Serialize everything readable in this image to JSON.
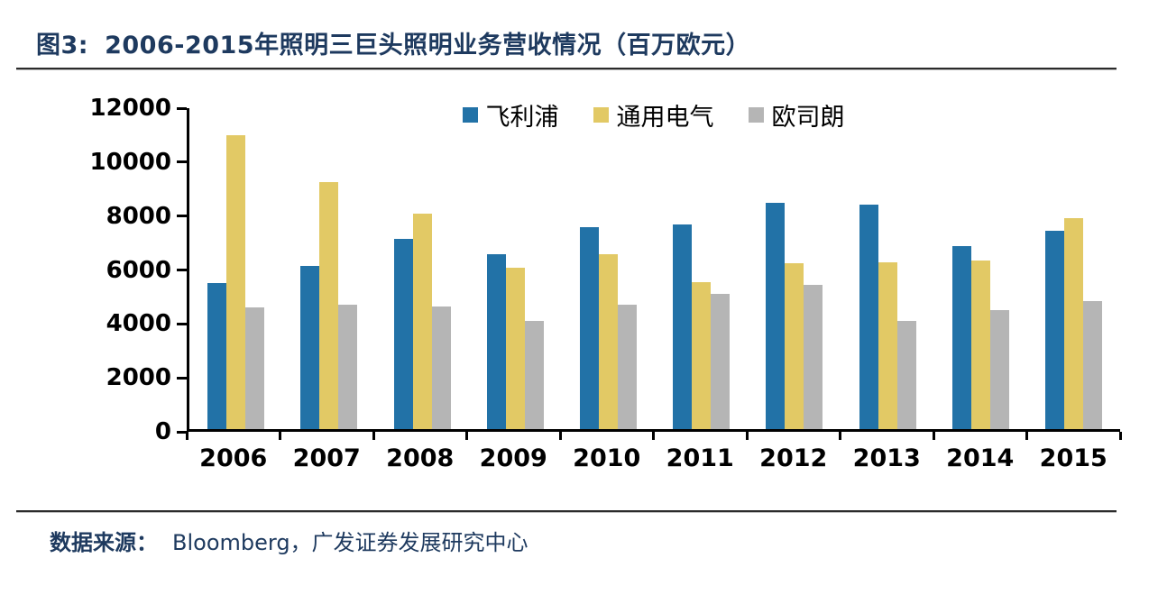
{
  "figure": {
    "title_prefix": "图3:",
    "title": "2006-2015年照明三巨头照明业务营收情况（百万欧元）",
    "source_label": "数据来源：",
    "source_text": "Bloomberg，广发证券发展研究中心"
  },
  "colors": {
    "philips_blue": "#2272A7",
    "ge_yellow": "#E2C965",
    "osram_gray": "#B5B5B5",
    "title_navy": "#1E3A5F",
    "axis_black": "#000000",
    "rule_dark": "#2b2b2b"
  },
  "chart_data": {
    "type": "bar",
    "title": "2006-2015年照明三巨头照明业务营收情况（百万欧元）",
    "categories": [
      "2006",
      "2007",
      "2008",
      "2009",
      "2010",
      "2011",
      "2012",
      "2013",
      "2014",
      "2015"
    ],
    "series": [
      {
        "key": "philips",
        "name": "飞利浦",
        "color": "#2272A7",
        "values": [
          5450,
          6100,
          7100,
          6550,
          7550,
          7650,
          8450,
          8400,
          6850,
          7400
        ]
      },
      {
        "key": "ge",
        "name": "通用电气",
        "color": "#E2C965",
        "values": [
          11000,
          9250,
          8050,
          6050,
          6550,
          5500,
          6200,
          6250,
          6300,
          7900
        ]
      },
      {
        "key": "osram",
        "name": "欧司朗",
        "color": "#B5B5B5",
        "values": [
          4550,
          4650,
          4600,
          4050,
          4650,
          5050,
          5400,
          4050,
          4450,
          4800
        ]
      }
    ],
    "xlabel": "",
    "ylabel": "",
    "ylim": [
      0,
      12000
    ],
    "yticks": [
      0,
      2000,
      4000,
      6000,
      8000,
      10000,
      12000
    ],
    "grid": false,
    "legend_position": "top-center"
  }
}
